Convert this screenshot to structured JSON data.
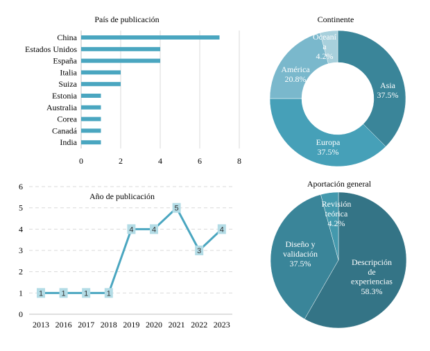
{
  "chart_data": [
    {
      "type": "bar",
      "orientation": "horizontal",
      "title": "País de publicación",
      "categories": [
        "China",
        "Estados Unidos",
        "España",
        "Italia",
        "Suiza",
        "Estonia",
        "Australia",
        "Corea",
        "Canadá",
        "India"
      ],
      "values": [
        7,
        4,
        4,
        2,
        2,
        1,
        1,
        1,
        1,
        1
      ],
      "xlim": [
        0,
        8
      ],
      "xticks": [
        "0",
        "2",
        "4",
        "6",
        "8"
      ],
      "grid": true,
      "color": "#4aa6c0"
    },
    {
      "type": "pie",
      "donut": true,
      "title": "Continente",
      "slices": [
        {
          "label": "Asia",
          "value": 37.5,
          "text": "37.5%",
          "color": "#3a8599"
        },
        {
          "label": "Europa",
          "value": 37.5,
          "text": "37.5%",
          "color": "#46a0b8"
        },
        {
          "label": "América",
          "value": 20.8,
          "text": "20.8%",
          "color": "#7ab8cc"
        },
        {
          "label": "Oceaní\na",
          "value": 4.2,
          "text": "4.2%",
          "color": "#a8d0dc"
        }
      ]
    },
    {
      "type": "line",
      "title": "Año de publicación",
      "categories": [
        "2013",
        "2016",
        "2017",
        "2018",
        "2019",
        "2020",
        "2021",
        "2022",
        "2023"
      ],
      "values": [
        1,
        1,
        1,
        1,
        4,
        4,
        5,
        3,
        4
      ],
      "ylim": [
        0,
        6
      ],
      "yticks": [
        "0",
        "1",
        "2",
        "3",
        "4",
        "5",
        "6"
      ],
      "grid": true,
      "color": "#4aa6c0",
      "label_bg": "#b3dce6"
    },
    {
      "type": "pie",
      "title": "Aportación general",
      "slices": [
        {
          "label": "Descripción\nde\nexperiencias",
          "value": 58.3,
          "text": "58.3%",
          "color": "#347486"
        },
        {
          "label": "Diseño y\nvalidación",
          "value": 37.5,
          "text": "37.5%",
          "color": "#3a8599"
        },
        {
          "label": "Revisión\nteórica",
          "value": 4.2,
          "text": "4.2%",
          "color": "#4499ad"
        }
      ]
    }
  ]
}
